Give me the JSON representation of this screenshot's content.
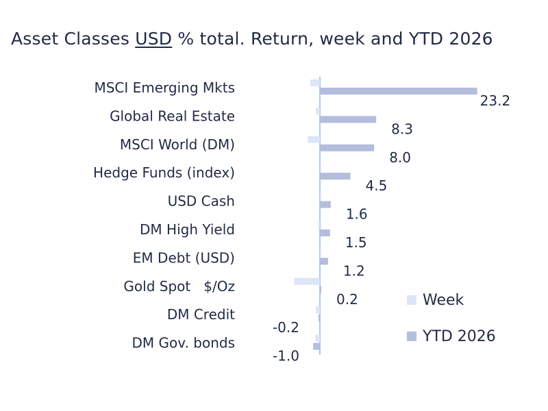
{
  "title_parts": [
    "Asset Classes ",
    "USD",
    " % total. Return, week and YTD 2026"
  ],
  "chart_data": {
    "type": "bar",
    "orientation": "horizontal",
    "title": "Asset Classes USD % total. Return, week and YTD 2026",
    "categories": [
      "MSCI Emerging Mkts",
      "Global Real Estate",
      "MSCI World (DM)",
      "Hedge Funds (index)",
      "USD Cash",
      "DM High Yield",
      "EM Debt (USD)",
      "Gold Spot   $/Oz",
      "DM Credit",
      "DM Gov. bonds"
    ],
    "series": [
      {
        "name": "Week",
        "color": "#dde6f7",
        "values": [
          -1.4,
          -0.6,
          -1.8,
          0.1,
          0.1,
          -0.2,
          0.1,
          -3.8,
          -0.6,
          -0.7
        ]
      },
      {
        "name": "YTD 2026",
        "color": "#b4bddc",
        "values": [
          23.2,
          8.3,
          8.0,
          4.5,
          1.6,
          1.5,
          1.2,
          0.2,
          -0.2,
          -1.0
        ]
      }
    ],
    "data_labels": [
      "23.2",
      "8.3",
      "8.0",
      "4.5",
      "1.6",
      "1.5",
      "1.2",
      "0.2",
      "-0.2",
      "-1.0"
    ],
    "axis_color": "#a9c8ec",
    "legend": {
      "placement": "bottom-right",
      "items": [
        "Week",
        "YTD 2026"
      ]
    },
    "grid": false
  }
}
